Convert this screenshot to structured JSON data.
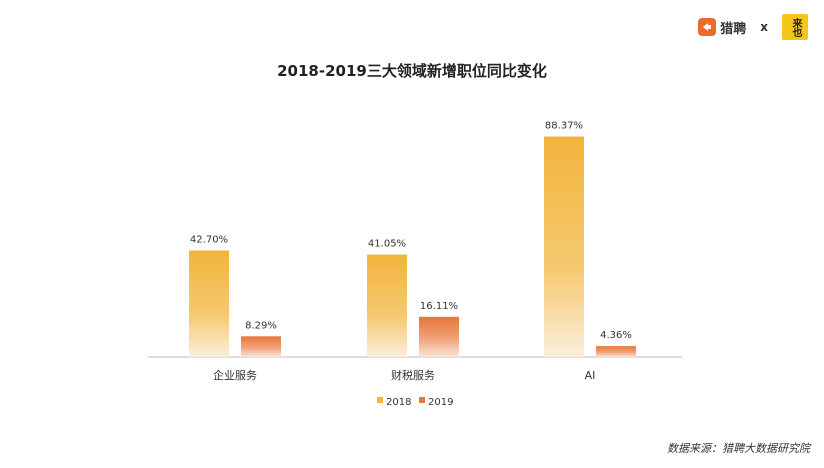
{
  "brand": {
    "name": "猎聘",
    "separator": "x",
    "partner": "来也"
  },
  "source": "数据来源：猎聘大数据研究院",
  "colors": {
    "y2018": "#f2b43c",
    "y2019": "#e8763a",
    "axis": "#bbbbbb"
  },
  "chart_data": {
    "type": "bar",
    "title": "2018-2019三大领域新增职位同比变化",
    "categories": [
      "企业服务",
      "财税服务",
      "AI"
    ],
    "series": [
      {
        "name": "2018",
        "values": [
          42.7,
          41.05,
          88.37
        ],
        "labels": [
          "42.70%",
          "41.05%",
          "88.37%"
        ]
      },
      {
        "name": "2019",
        "values": [
          8.29,
          16.11,
          4.36
        ],
        "labels": [
          "8.29%",
          "16.11%",
          "4.36%"
        ]
      }
    ],
    "ylim": [
      0,
      95
    ],
    "grid": false,
    "legend": "bottom-center"
  }
}
